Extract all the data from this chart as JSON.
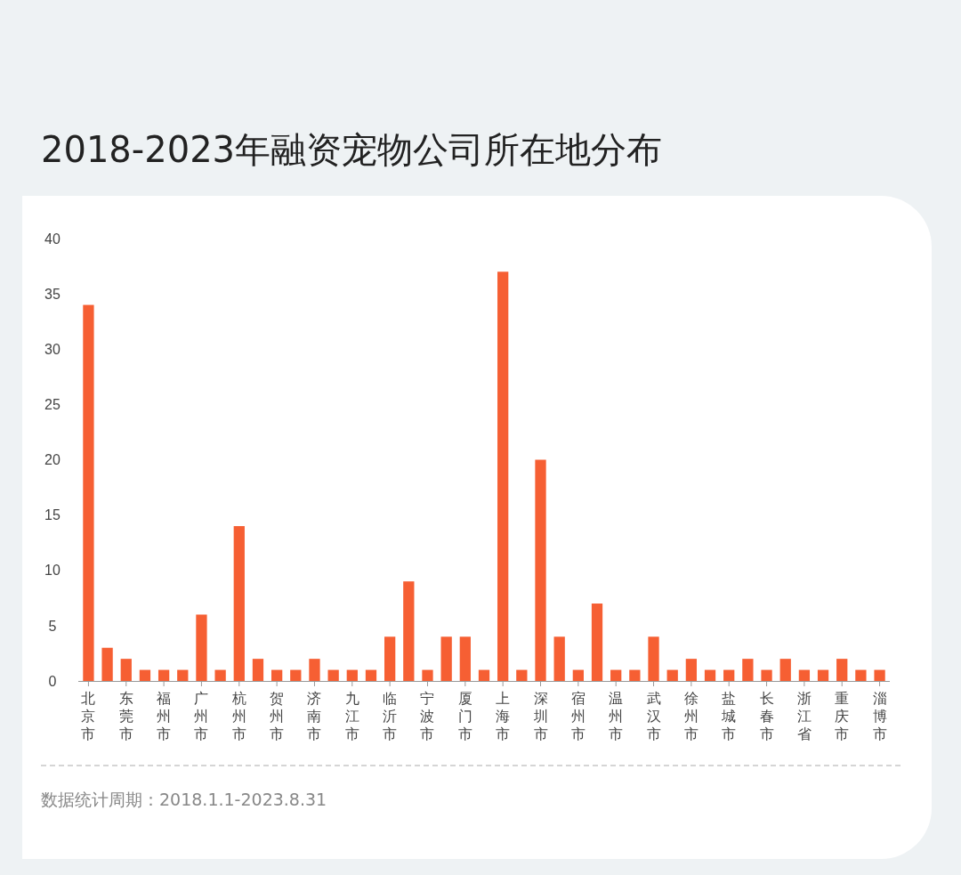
{
  "chart_data": {
    "type": "bar",
    "title": "2018-2023年融资宠物公司所在地分布",
    "categories": [
      "北京市",
      null,
      "东莞市",
      null,
      "福州市",
      null,
      "广州市",
      null,
      "杭州市",
      null,
      "贺州市",
      null,
      "济南市",
      null,
      "九江市",
      null,
      "临沂市",
      null,
      "宁波市",
      null,
      "厦门市",
      null,
      "上海市",
      null,
      "深圳市",
      null,
      "宿州市",
      null,
      "温州市",
      null,
      "武汉市",
      null,
      "徐州市",
      null,
      "盐城市",
      null,
      "长春市",
      null,
      "浙江省",
      null,
      "重庆市",
      null,
      "淄博市"
    ],
    "values": [
      34,
      3,
      2,
      1,
      1,
      1,
      6,
      1,
      14,
      2,
      1,
      1,
      2,
      1,
      1,
      1,
      4,
      9,
      1,
      4,
      4,
      1,
      37,
      1,
      20,
      4,
      1,
      7,
      1,
      1,
      4,
      1,
      2,
      1,
      1,
      2,
      1,
      2,
      1,
      1,
      2,
      1,
      1
    ],
    "color": "#f65f33",
    "ylim": [
      0,
      40
    ],
    "yticks": [
      0,
      5,
      10,
      15,
      20,
      25,
      30,
      35,
      40
    ],
    "grid": false,
    "annotations": [
      "数据统计周期：2018.1.1-2023.8.31"
    ]
  }
}
